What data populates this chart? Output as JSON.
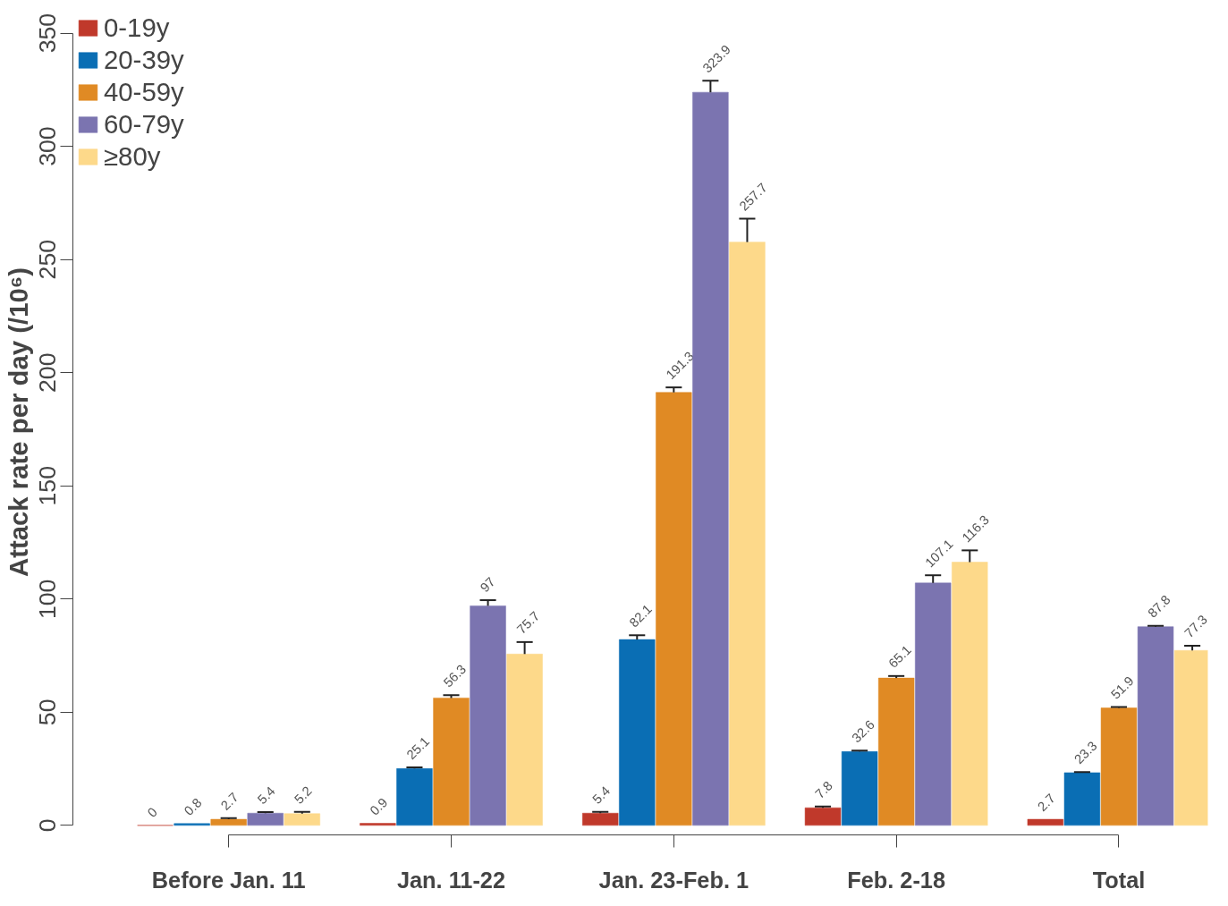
{
  "chart_data": {
    "type": "bar",
    "ylabel": "Attack rate per day (/10⁶)",
    "categories": [
      "Before Jan. 11",
      "Jan. 11-22",
      "Jan. 23-Feb. 1",
      "Feb. 2-18",
      "Total"
    ],
    "series": [
      {
        "name": "0-19y",
        "color": "#c0392b",
        "values": [
          0,
          0.9,
          5.4,
          7.8,
          2.7
        ],
        "errors": [
          null,
          null,
          [
            5.4,
            6
          ],
          [
            7.8,
            8.3
          ],
          null
        ]
      },
      {
        "name": "20-39y",
        "color": "#0a6eb4",
        "values": [
          0.8,
          25.1,
          82.1,
          32.6,
          23.3
        ],
        "errors": [
          null,
          [
            25.1,
            25.6
          ],
          [
            82.1,
            84
          ],
          [
            32.6,
            33
          ],
          [
            23.3,
            23.6
          ]
        ]
      },
      {
        "name": "40-59y",
        "color": "#e08a24",
        "values": [
          2.7,
          56.3,
          191.3,
          65.1,
          51.9
        ],
        "errors": [
          [
            2.7,
            3.2
          ],
          [
            56.3,
            57.5
          ],
          [
            191.3,
            193.5
          ],
          [
            65.1,
            66
          ],
          [
            51.9,
            52.3
          ]
        ]
      },
      {
        "name": "60-79y",
        "color": "#7b74b0",
        "values": [
          5.4,
          97,
          323.9,
          107.1,
          87.8
        ],
        "errors": [
          [
            5.4,
            5.9
          ],
          [
            97,
            99.5
          ],
          [
            323.9,
            329
          ],
          [
            107.1,
            110.5
          ],
          [
            87.8,
            88.2
          ]
        ]
      },
      {
        "name": "≥80y",
        "color": "#fdd98a",
        "values": [
          5.2,
          75.7,
          257.7,
          116.3,
          77.3
        ],
        "errors": [
          [
            5.2,
            6
          ],
          [
            75.7,
            81
          ],
          [
            257.7,
            268
          ],
          [
            116.3,
            121.5
          ],
          [
            77.3,
            79.4
          ]
        ]
      }
    ],
    "ylim": [
      0,
      350
    ],
    "yticks": [
      0,
      50,
      100,
      150,
      200,
      250,
      300,
      350
    ],
    "data_labels": true,
    "grid": false,
    "legend": "top left"
  }
}
